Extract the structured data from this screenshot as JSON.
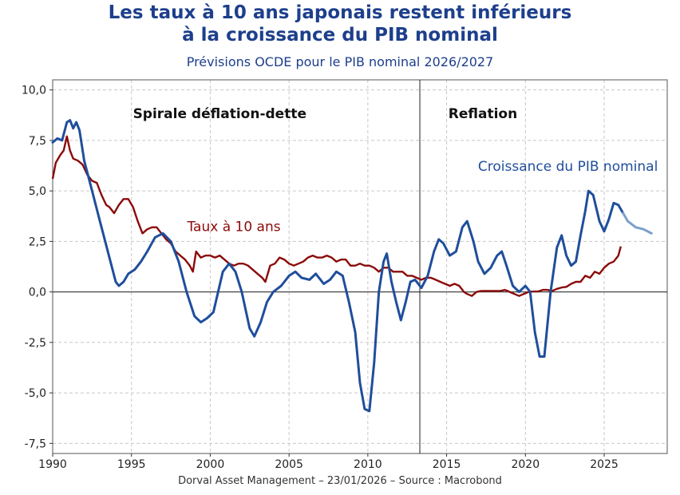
{
  "title_line1": "Les taux à 10 ans japonais restent inférieurs",
  "title_line2": "à la croissance du PIB nominal",
  "subtitle": "Prévisions OCDE pour le PIB nominal 2026/2027",
  "source": "Dorval Asset Management – 23/01/2026  –   Source : Macrobond",
  "colors": {
    "title": "#1d3f8c",
    "gdp": "#1f4e9c",
    "gdp_forecast": "#7aa0cc",
    "yield": "#8b0a0a",
    "grid": "#c8c8c8"
  },
  "chart_data": {
    "type": "line",
    "xlim": [
      1990,
      2029
    ],
    "ylim": [
      -8,
      10.5
    ],
    "x_ticks": [
      1990,
      1995,
      2000,
      2005,
      2010,
      2015,
      2020,
      2025
    ],
    "x_tick_labels": [
      "1990",
      "1995",
      "2000",
      "2005",
      "2010",
      "2015",
      "2020",
      "2025"
    ],
    "y_ticks": [
      10,
      7.5,
      5,
      2.5,
      0,
      -2.5,
      -5,
      -7.5
    ],
    "y_tick_labels": [
      "10,0",
      "7,5",
      "5,0",
      "2,5",
      "0,0",
      "-2,5",
      "-5,0",
      "-7,5"
    ],
    "grid": true,
    "vertical_line_x": 2013.3,
    "regime_labels": [
      {
        "text": "Spirale déflation-dette",
        "x": 2000.6,
        "y": 8.6
      },
      {
        "text": "Reflation",
        "x": 2017.3,
        "y": 8.6
      }
    ],
    "series": [
      {
        "name": "Croissance du PIB nominal",
        "label_x": 2022.7,
        "label_y": 6.0,
        "points": [
          [
            1990,
            7.4
          ],
          [
            1990.3,
            7.6
          ],
          [
            1990.6,
            7.5
          ],
          [
            1990.9,
            8.4
          ],
          [
            1991.1,
            8.5
          ],
          [
            1991.3,
            8.1
          ],
          [
            1991.5,
            8.4
          ],
          [
            1991.7,
            8.0
          ],
          [
            1992,
            6.5
          ],
          [
            1992.5,
            5.0
          ],
          [
            1993,
            3.5
          ],
          [
            1993.5,
            2.0
          ],
          [
            1994,
            0.5
          ],
          [
            1994.2,
            0.3
          ],
          [
            1994.5,
            0.5
          ],
          [
            1994.8,
            0.9
          ],
          [
            1995.2,
            1.1
          ],
          [
            1995.6,
            1.5
          ],
          [
            1996,
            2.0
          ],
          [
            1996.5,
            2.7
          ],
          [
            1997,
            2.9
          ],
          [
            1997.5,
            2.5
          ],
          [
            1998,
            1.5
          ],
          [
            1998.5,
            0
          ],
          [
            1999,
            -1.2
          ],
          [
            1999.4,
            -1.5
          ],
          [
            1999.8,
            -1.3
          ],
          [
            2000.2,
            -1.0
          ],
          [
            2000.5,
            0
          ],
          [
            2000.8,
            1.0
          ],
          [
            2001.2,
            1.4
          ],
          [
            2001.6,
            1.0
          ],
          [
            2002,
            0
          ],
          [
            2002.5,
            -1.8
          ],
          [
            2002.8,
            -2.2
          ],
          [
            2003.2,
            -1.5
          ],
          [
            2003.6,
            -0.5
          ],
          [
            2004,
            0
          ],
          [
            2004.5,
            0.3
          ],
          [
            2005,
            0.8
          ],
          [
            2005.4,
            1.0
          ],
          [
            2005.8,
            0.7
          ],
          [
            2006.3,
            0.6
          ],
          [
            2006.7,
            0.9
          ],
          [
            2007.2,
            0.4
          ],
          [
            2007.6,
            0.6
          ],
          [
            2008,
            1.0
          ],
          [
            2008.4,
            0.8
          ],
          [
            2008.8,
            -0.5
          ],
          [
            2009.2,
            -2.0
          ],
          [
            2009.5,
            -4.5
          ],
          [
            2009.8,
            -5.8
          ],
          [
            2010.1,
            -5.9
          ],
          [
            2010.4,
            -3.5
          ],
          [
            2010.7,
            0
          ],
          [
            2011,
            1.5
          ],
          [
            2011.2,
            1.9
          ],
          [
            2011.5,
            0.5
          ],
          [
            2011.8,
            -0.5
          ],
          [
            2012.1,
            -1.4
          ],
          [
            2012.4,
            -0.5
          ],
          [
            2012.7,
            0.5
          ],
          [
            2013,
            0.6
          ],
          [
            2013.4,
            0.2
          ],
          [
            2013.8,
            0.8
          ],
          [
            2014.2,
            2.0
          ],
          [
            2014.5,
            2.6
          ],
          [
            2014.8,
            2.4
          ],
          [
            2015.2,
            1.8
          ],
          [
            2015.6,
            2.0
          ],
          [
            2016,
            3.2
          ],
          [
            2016.3,
            3.5
          ],
          [
            2016.7,
            2.5
          ],
          [
            2017,
            1.5
          ],
          [
            2017.4,
            0.9
          ],
          [
            2017.8,
            1.2
          ],
          [
            2018.2,
            1.8
          ],
          [
            2018.5,
            2.0
          ],
          [
            2018.8,
            1.3
          ],
          [
            2019.2,
            0.3
          ],
          [
            2019.6,
            0
          ],
          [
            2020,
            0.3
          ],
          [
            2020.3,
            0
          ],
          [
            2020.6,
            -2.0
          ],
          [
            2020.9,
            -3.2
          ],
          [
            2021.2,
            -3.2
          ],
          [
            2021.6,
            0
          ],
          [
            2022,
            2.2
          ],
          [
            2022.3,
            2.8
          ],
          [
            2022.6,
            1.8
          ],
          [
            2022.9,
            1.3
          ],
          [
            2023.2,
            1.5
          ],
          [
            2023.5,
            2.8
          ],
          [
            2023.8,
            4.0
          ],
          [
            2024,
            5.0
          ],
          [
            2024.3,
            4.8
          ],
          [
            2024.7,
            3.5
          ],
          [
            2025,
            3.0
          ],
          [
            2025.3,
            3.6
          ],
          [
            2025.6,
            4.4
          ],
          [
            2025.9,
            4.3
          ],
          [
            2026.2,
            3.9
          ]
        ],
        "forecast_points": [
          [
            2026.2,
            3.9
          ],
          [
            2026.5,
            3.5
          ],
          [
            2027,
            3.2
          ],
          [
            2027.5,
            3.1
          ],
          [
            2028,
            2.9
          ]
        ]
      },
      {
        "name": "Taux à 10 ans",
        "label_x": 2001.5,
        "label_y": 3.0,
        "points": [
          [
            1990,
            5.6
          ],
          [
            1990.2,
            6.4
          ],
          [
            1990.5,
            6.8
          ],
          [
            1990.7,
            7.0
          ],
          [
            1990.9,
            7.7
          ],
          [
            1991.1,
            7.0
          ],
          [
            1991.3,
            6.6
          ],
          [
            1991.6,
            6.5
          ],
          [
            1991.9,
            6.3
          ],
          [
            1992.2,
            5.8
          ],
          [
            1992.5,
            5.5
          ],
          [
            1992.8,
            5.4
          ],
          [
            1993.1,
            4.8
          ],
          [
            1993.4,
            4.3
          ],
          [
            1993.6,
            4.2
          ],
          [
            1993.9,
            3.9
          ],
          [
            1994.2,
            4.3
          ],
          [
            1994.5,
            4.6
          ],
          [
            1994.8,
            4.6
          ],
          [
            1995.1,
            4.2
          ],
          [
            1995.4,
            3.5
          ],
          [
            1995.7,
            2.9
          ],
          [
            1996,
            3.1
          ],
          [
            1996.3,
            3.2
          ],
          [
            1996.6,
            3.2
          ],
          [
            1996.9,
            2.9
          ],
          [
            1997.2,
            2.6
          ],
          [
            1997.5,
            2.4
          ],
          [
            1997.8,
            2.0
          ],
          [
            1998.1,
            1.8
          ],
          [
            1998.4,
            1.6
          ],
          [
            1998.7,
            1.3
          ],
          [
            1998.9,
            1.0
          ],
          [
            1999.1,
            2.0
          ],
          [
            1999.4,
            1.7
          ],
          [
            1999.7,
            1.8
          ],
          [
            2000,
            1.8
          ],
          [
            2000.3,
            1.7
          ],
          [
            2000.6,
            1.8
          ],
          [
            2000.9,
            1.6
          ],
          [
            2001.2,
            1.4
          ],
          [
            2001.5,
            1.3
          ],
          [
            2001.8,
            1.4
          ],
          [
            2002.1,
            1.4
          ],
          [
            2002.4,
            1.3
          ],
          [
            2002.7,
            1.1
          ],
          [
            2003,
            0.9
          ],
          [
            2003.3,
            0.7
          ],
          [
            2003.5,
            0.5
          ],
          [
            2003.8,
            1.3
          ],
          [
            2004.1,
            1.4
          ],
          [
            2004.4,
            1.7
          ],
          [
            2004.7,
            1.6
          ],
          [
            2005,
            1.4
          ],
          [
            2005.3,
            1.3
          ],
          [
            2005.6,
            1.4
          ],
          [
            2005.9,
            1.5
          ],
          [
            2006.2,
            1.7
          ],
          [
            2006.5,
            1.8
          ],
          [
            2006.8,
            1.7
          ],
          [
            2007.1,
            1.7
          ],
          [
            2007.4,
            1.8
          ],
          [
            2007.7,
            1.7
          ],
          [
            2008,
            1.5
          ],
          [
            2008.3,
            1.6
          ],
          [
            2008.6,
            1.6
          ],
          [
            2008.9,
            1.3
          ],
          [
            2009.2,
            1.3
          ],
          [
            2009.5,
            1.4
          ],
          [
            2009.8,
            1.3
          ],
          [
            2010.1,
            1.3
          ],
          [
            2010.4,
            1.2
          ],
          [
            2010.7,
            1.0
          ],
          [
            2011,
            1.2
          ],
          [
            2011.3,
            1.2
          ],
          [
            2011.6,
            1.0
          ],
          [
            2011.9,
            1.0
          ],
          [
            2012.2,
            1.0
          ],
          [
            2012.5,
            0.8
          ],
          [
            2012.8,
            0.8
          ],
          [
            2013.1,
            0.7
          ],
          [
            2013.4,
            0.6
          ],
          [
            2013.7,
            0.7
          ],
          [
            2014,
            0.7
          ],
          [
            2014.3,
            0.6
          ],
          [
            2014.6,
            0.5
          ],
          [
            2014.9,
            0.4
          ],
          [
            2015.2,
            0.3
          ],
          [
            2015.5,
            0.4
          ],
          [
            2015.8,
            0.3
          ],
          [
            2016.1,
            0
          ],
          [
            2016.3,
            -0.1
          ],
          [
            2016.6,
            -0.2
          ],
          [
            2016.9,
            0
          ],
          [
            2017.2,
            0.05
          ],
          [
            2017.5,
            0.05
          ],
          [
            2017.8,
            0.05
          ],
          [
            2018.1,
            0.05
          ],
          [
            2018.4,
            0.05
          ],
          [
            2018.7,
            0.1
          ],
          [
            2019,
            0
          ],
          [
            2019.3,
            -0.1
          ],
          [
            2019.6,
            -0.2
          ],
          [
            2019.9,
            -0.1
          ],
          [
            2020.2,
            0
          ],
          [
            2020.5,
            0.02
          ],
          [
            2020.8,
            0.02
          ],
          [
            2021.1,
            0.1
          ],
          [
            2021.4,
            0.1
          ],
          [
            2021.7,
            0.05
          ],
          [
            2022,
            0.15
          ],
          [
            2022.3,
            0.22
          ],
          [
            2022.6,
            0.25
          ],
          [
            2022.9,
            0.4
          ],
          [
            2023.2,
            0.5
          ],
          [
            2023.5,
            0.5
          ],
          [
            2023.8,
            0.8
          ],
          [
            2024.1,
            0.7
          ],
          [
            2024.4,
            1.0
          ],
          [
            2024.7,
            0.9
          ],
          [
            2025,
            1.2
          ],
          [
            2025.3,
            1.4
          ],
          [
            2025.6,
            1.5
          ],
          [
            2025.9,
            1.8
          ],
          [
            2026.05,
            2.25
          ]
        ]
      }
    ]
  }
}
